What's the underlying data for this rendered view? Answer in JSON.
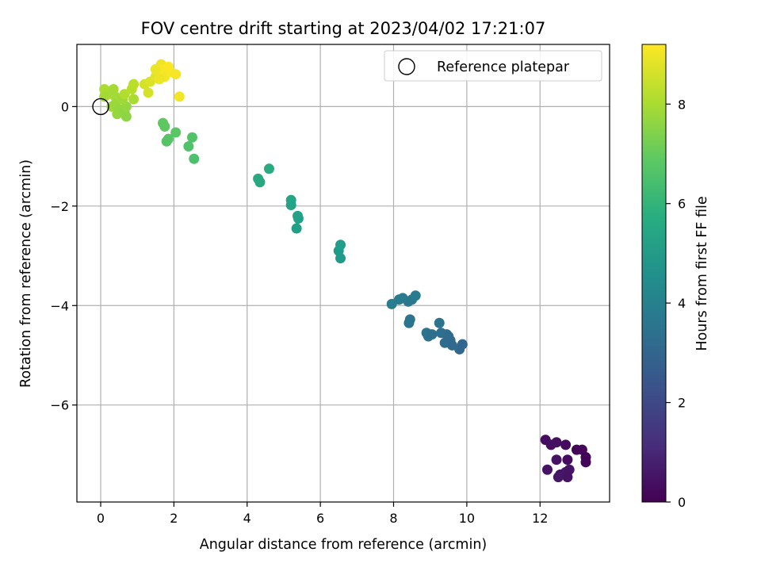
{
  "chart_data": {
    "type": "scatter",
    "title": "FOV centre drift starting at 2023/04/02 17:21:07",
    "xlabel": "Angular distance from reference (arcmin)",
    "ylabel": "Rotation from reference (arcmin)",
    "xlim": [
      -0.65,
      13.9
    ],
    "ylim": [
      -7.95,
      1.25
    ],
    "xticks": [
      0,
      2,
      4,
      6,
      8,
      10,
      12
    ],
    "yticks": [
      0,
      -2,
      -4,
      -6
    ],
    "grid": true,
    "legend": {
      "placement": "top-right",
      "entries": [
        "Reference platepar"
      ]
    },
    "reference_point": {
      "name": "Reference platepar",
      "x": 0,
      "y": 0
    },
    "colorbar": {
      "label": "Hours from first FF file",
      "colormap": "viridis",
      "min": 0,
      "max": 9.2,
      "ticks": [
        0,
        2,
        4,
        6,
        8
      ]
    },
    "points": [
      {
        "x": 12.15,
        "y": -6.7,
        "c": 0.3
      },
      {
        "x": 12.3,
        "y": -6.8,
        "c": 0.35
      },
      {
        "x": 12.45,
        "y": -6.75,
        "c": 0.4
      },
      {
        "x": 12.7,
        "y": -6.8,
        "c": 0.25
      },
      {
        "x": 13.0,
        "y": -6.9,
        "c": 0.1
      },
      {
        "x": 13.15,
        "y": -6.9,
        "c": 0.15
      },
      {
        "x": 13.25,
        "y": -7.05,
        "c": 0.05
      },
      {
        "x": 13.25,
        "y": -7.15,
        "c": 0.1
      },
      {
        "x": 12.2,
        "y": -7.3,
        "c": 0.5
      },
      {
        "x": 12.45,
        "y": -7.1,
        "c": 0.45
      },
      {
        "x": 12.75,
        "y": -7.1,
        "c": 0.3
      },
      {
        "x": 12.55,
        "y": -7.4,
        "c": 0.4
      },
      {
        "x": 12.7,
        "y": -7.35,
        "c": 0.55
      },
      {
        "x": 12.8,
        "y": -7.3,
        "c": 0.5
      },
      {
        "x": 12.75,
        "y": -7.45,
        "c": 0.45
      },
      {
        "x": 12.5,
        "y": -7.45,
        "c": 0.55
      },
      {
        "x": 7.95,
        "y": -3.97,
        "c": 3.9
      },
      {
        "x": 8.15,
        "y": -3.88,
        "c": 3.85
      },
      {
        "x": 8.25,
        "y": -3.85,
        "c": 3.8
      },
      {
        "x": 8.4,
        "y": -3.92,
        "c": 3.75
      },
      {
        "x": 8.5,
        "y": -3.88,
        "c": 3.7
      },
      {
        "x": 8.6,
        "y": -3.8,
        "c": 3.8
      },
      {
        "x": 8.45,
        "y": -4.28,
        "c": 3.6
      },
      {
        "x": 8.42,
        "y": -4.35,
        "c": 3.55
      },
      {
        "x": 8.9,
        "y": -4.55,
        "c": 3.5
      },
      {
        "x": 8.95,
        "y": -4.62,
        "c": 3.45
      },
      {
        "x": 9.05,
        "y": -4.58,
        "c": 3.4
      },
      {
        "x": 9.25,
        "y": -4.35,
        "c": 3.5
      },
      {
        "x": 9.3,
        "y": -4.55,
        "c": 3.35
      },
      {
        "x": 9.45,
        "y": -4.58,
        "c": 3.3
      },
      {
        "x": 9.4,
        "y": -4.75,
        "c": 3.25
      },
      {
        "x": 9.55,
        "y": -4.7,
        "c": 3.2
      },
      {
        "x": 9.6,
        "y": -4.8,
        "c": 3.15
      },
      {
        "x": 9.8,
        "y": -4.88,
        "c": 3.1
      },
      {
        "x": 9.88,
        "y": -4.78,
        "c": 3.05
      },
      {
        "x": 9.5,
        "y": -4.62,
        "c": 3.2
      },
      {
        "x": 4.3,
        "y": -1.45,
        "c": 5.55
      },
      {
        "x": 4.35,
        "y": -1.52,
        "c": 5.5
      },
      {
        "x": 4.6,
        "y": -1.25,
        "c": 5.6
      },
      {
        "x": 5.2,
        "y": -1.88,
        "c": 5.4
      },
      {
        "x": 5.2,
        "y": -1.98,
        "c": 5.35
      },
      {
        "x": 5.38,
        "y": -2.2,
        "c": 5.3
      },
      {
        "x": 5.4,
        "y": -2.25,
        "c": 5.25
      },
      {
        "x": 5.35,
        "y": -2.45,
        "c": 5.2
      },
      {
        "x": 6.5,
        "y": -2.9,
        "c": 5.05
      },
      {
        "x": 6.55,
        "y": -2.78,
        "c": 5.1
      },
      {
        "x": 6.55,
        "y": -3.05,
        "c": 5.0
      },
      {
        "x": 1.7,
        "y": -0.33,
        "c": 6.9
      },
      {
        "x": 1.75,
        "y": -0.4,
        "c": 6.85
      },
      {
        "x": 2.05,
        "y": -0.52,
        "c": 6.8
      },
      {
        "x": 1.85,
        "y": -0.65,
        "c": 6.75
      },
      {
        "x": 1.8,
        "y": -0.7,
        "c": 6.7
      },
      {
        "x": 2.5,
        "y": -0.62,
        "c": 6.65
      },
      {
        "x": 2.4,
        "y": -0.8,
        "c": 6.6
      },
      {
        "x": 2.55,
        "y": -1.05,
        "c": 6.55
      },
      {
        "x": 0.1,
        "y": 0.35,
        "c": 8.05
      },
      {
        "x": 0.2,
        "y": 0.25,
        "c": 8.0
      },
      {
        "x": 0.35,
        "y": 0.35,
        "c": 7.95
      },
      {
        "x": 0.4,
        "y": 0.2,
        "c": 7.9
      },
      {
        "x": 0.1,
        "y": 0.2,
        "c": 7.95
      },
      {
        "x": 0.3,
        "y": 0.0,
        "c": 7.85
      },
      {
        "x": 0.4,
        "y": 0.05,
        "c": 7.8
      },
      {
        "x": 0.5,
        "y": -0.05,
        "c": 7.75
      },
      {
        "x": 0.45,
        "y": -0.15,
        "c": 7.7
      },
      {
        "x": 0.65,
        "y": -0.1,
        "c": 7.65
      },
      {
        "x": 0.7,
        "y": -0.2,
        "c": 7.6
      },
      {
        "x": 0.7,
        "y": 0.0,
        "c": 7.7
      },
      {
        "x": 0.6,
        "y": 0.15,
        "c": 7.85
      },
      {
        "x": 0.9,
        "y": 0.15,
        "c": 8.0
      },
      {
        "x": 0.65,
        "y": 0.25,
        "c": 8.1
      },
      {
        "x": 0.85,
        "y": 0.35,
        "c": 8.2
      },
      {
        "x": 0.9,
        "y": 0.45,
        "c": 8.25
      },
      {
        "x": 1.2,
        "y": 0.45,
        "c": 8.6
      },
      {
        "x": 1.35,
        "y": 0.5,
        "c": 8.7
      },
      {
        "x": 1.3,
        "y": 0.28,
        "c": 8.65
      },
      {
        "x": 1.5,
        "y": 0.6,
        "c": 8.8
      },
      {
        "x": 1.6,
        "y": 0.7,
        "c": 8.9
      },
      {
        "x": 1.65,
        "y": 0.85,
        "c": 9.0
      },
      {
        "x": 1.7,
        "y": 0.75,
        "c": 9.1
      },
      {
        "x": 1.75,
        "y": 0.6,
        "c": 9.05
      },
      {
        "x": 1.6,
        "y": 0.55,
        "c": 8.95
      },
      {
        "x": 1.85,
        "y": 0.8,
        "c": 9.15
      },
      {
        "x": 1.9,
        "y": 0.7,
        "c": 9.15
      },
      {
        "x": 2.05,
        "y": 0.65,
        "c": 9.1
      },
      {
        "x": 1.5,
        "y": 0.75,
        "c": 8.95
      },
      {
        "x": 2.15,
        "y": 0.2,
        "c": 9.05
      }
    ]
  }
}
